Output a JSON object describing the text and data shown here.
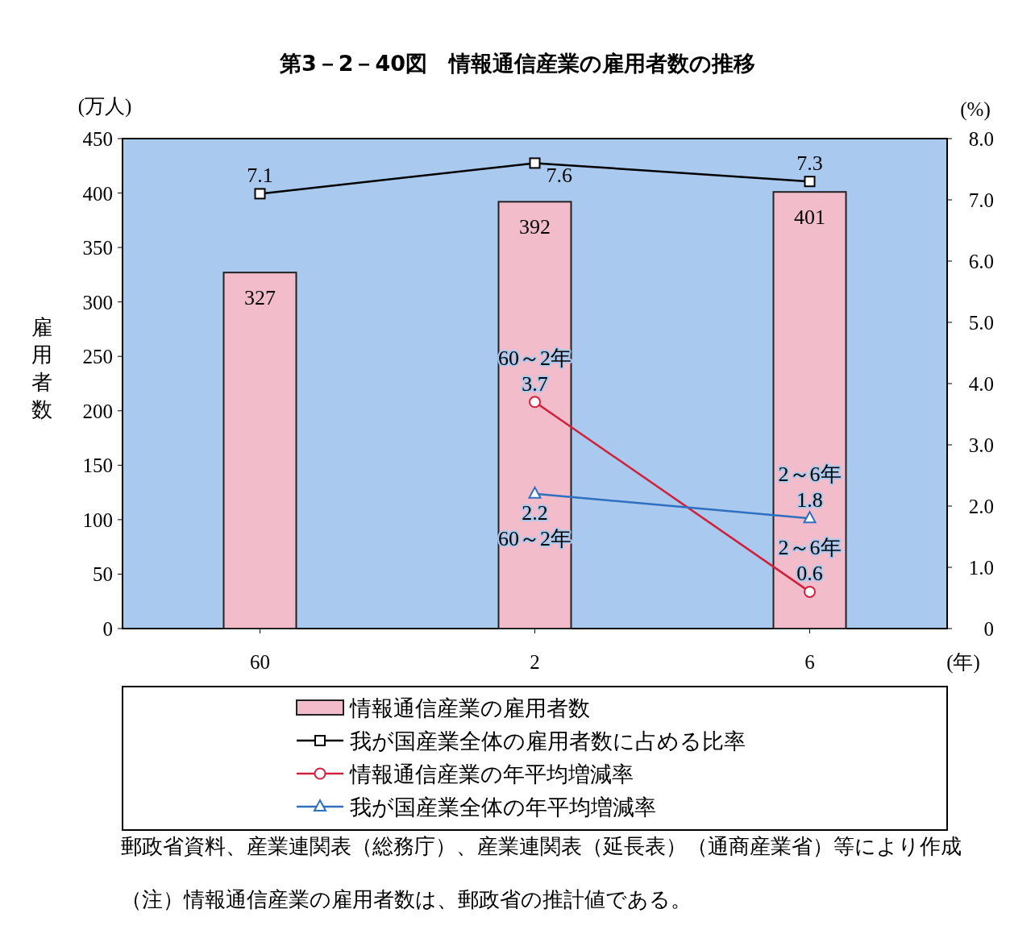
{
  "chart_data": {
    "type": "bar",
    "title": "第3－2－40図　情報通信産業の雇用者数の推移",
    "ylabel": "雇用者数",
    "y2label": "(%)",
    "xlabel": "(年)",
    "categories": [
      "60",
      "2",
      "6"
    ],
    "ylim": [
      0,
      450
    ],
    "yticks": [
      0,
      50,
      100,
      150,
      200,
      250,
      300,
      350,
      400,
      450
    ],
    "y2lim": [
      0,
      8
    ],
    "y2ticks": [
      0,
      {
        "value": 1,
        "label": "1.0"
      },
      {
        "value": 2,
        "label": "2.0"
      },
      {
        "value": 3,
        "label": "3.0"
      },
      {
        "value": 4,
        "label": "4.0"
      },
      {
        "value": 5,
        "label": "5.0"
      },
      {
        "value": 6,
        "label": "6.0"
      },
      {
        "value": 7,
        "label": "7.0"
      },
      {
        "value": 8,
        "label": "8.0"
      }
    ],
    "legend": "bottom",
    "data_labels": true,
    "series": [
      {
        "name": "情報通信産業の雇用者数",
        "color": "#f2bccb",
        "values": [
          327,
          392,
          401
        ]
      },
      {
        "name": "我が国産業全体の雇用者数に占める比率",
        "type": "line",
        "axis": "y2",
        "color": "#000000",
        "marker": "square",
        "values": [
          7.1,
          7.6,
          7.3
        ]
      },
      {
        "name": "情報通信産業の年平均増減率",
        "type": "line",
        "axis": "y2",
        "color": "#d0203c",
        "marker": "circle",
        "values": [
          null,
          3.7,
          0.6
        ]
      },
      {
        "name": "我が国産業全体の年平均増減率",
        "type": "line",
        "axis": "y2",
        "color": "#2f6fc0",
        "marker": "triangle",
        "values": [
          null,
          2.2,
          1.8
        ]
      }
    ],
    "annotations": [
      "(万人)",
      "60～2年",
      "2～6年",
      "60～2年",
      "2～6年",
      "郵政省資料、産業連関表（総務庁）、産業連関表（延長表）（通商産業省）等により作成",
      "（注）情報通信産業の雇用者数は、郵政省の推計値である。"
    ]
  }
}
